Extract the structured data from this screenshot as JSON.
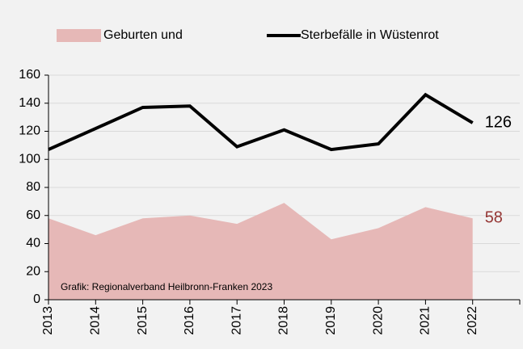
{
  "chart_data": {
    "type": "line",
    "categories": [
      "2013",
      "2014",
      "2015",
      "2016",
      "2017",
      "2018",
      "2019",
      "2020",
      "2021",
      "2022"
    ],
    "series": [
      {
        "name": "Geburten und",
        "type": "area",
        "color": "#e6b8b7",
        "label_color": "#953735",
        "values": [
          58,
          46,
          58,
          60,
          54,
          69,
          43,
          51,
          66,
          58
        ]
      },
      {
        "name": "Sterbefälle in Wüstenrot",
        "type": "line",
        "color": "#000000",
        "label_color": "#000000",
        "values": [
          107,
          122,
          137,
          138,
          109,
          121,
          107,
          111,
          146,
          126
        ]
      }
    ],
    "annotation": "Grafik: Regionalverband Heilbronn-Franken 2023",
    "ylim": [
      0,
      160
    ],
    "yticks": [
      0,
      20,
      40,
      60,
      80,
      100,
      120,
      140,
      160
    ],
    "grid": true
  }
}
